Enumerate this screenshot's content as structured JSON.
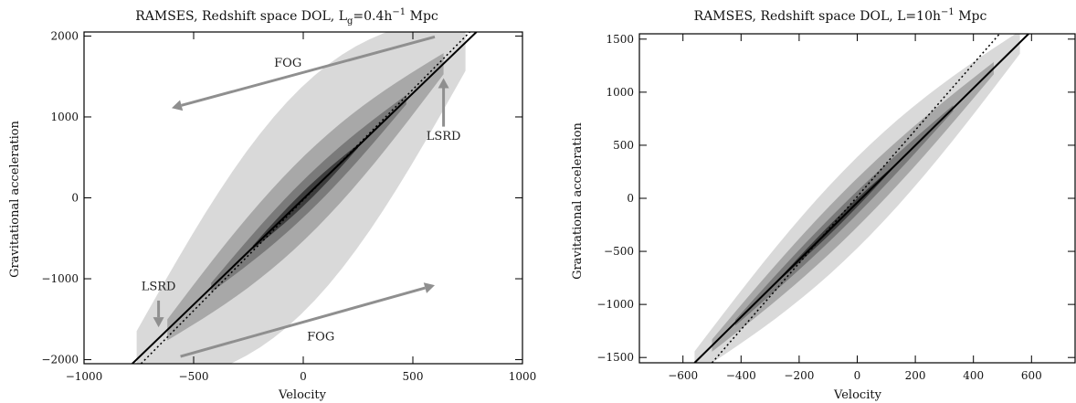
{
  "chart_data": [
    {
      "type": "scatter",
      "title": "RAMSES, Redshift space DOL, L",
      "title_sub": "g",
      "title_rest": "=0.4h",
      "title_sup": "−1",
      "title_tail": " Mpc",
      "xlabel": "Velocity",
      "ylabel": "Gravitational acceleration",
      "xlim": [
        -1000,
        1000
      ],
      "ylim": [
        -2050,
        2050
      ],
      "xticks": [
        -1000,
        -500,
        0,
        500,
        1000
      ],
      "xtick_labels": [
        "−1000",
        "−500",
        "0",
        "500",
        "1000"
      ],
      "yticks": [
        -2000,
        -1000,
        0,
        1000,
        2000
      ],
      "ytick_labels": [
        "−2000",
        "−1000",
        "0",
        "1000",
        "2000"
      ],
      "density_levels": [
        {
          "level": 1,
          "color": "#d9d9d9",
          "half_width": 1400,
          "x_extent": [
            -760,
            740
          ]
        },
        {
          "level": 2,
          "color": "#a8a8a8",
          "half_width": 520,
          "x_extent": [
            -620,
            640
          ]
        },
        {
          "level": 3,
          "color": "#7a7a7a",
          "half_width": 230,
          "x_extent": [
            -420,
            470
          ]
        },
        {
          "level": 4,
          "color": "#3d3d3d",
          "half_width": 90,
          "x_extent": [
            -230,
            250
          ]
        }
      ],
      "lines": [
        {
          "style": "solid",
          "points": [
            [
              -780,
              -2050
            ],
            [
              790,
              2050
            ]
          ]
        },
        {
          "style": "dotted",
          "points": [
            [
              -740,
              -2050
            ],
            [
              760,
              2050
            ]
          ]
        }
      ],
      "annotations": [
        {
          "text": "FOG",
          "x": -70,
          "y": 1620,
          "arrow_from": [
            600,
            1990
          ],
          "arrow_to": [
            -600,
            1110
          ]
        },
        {
          "text": "LSRD",
          "x": 640,
          "y": 720,
          "arrow_from": [
            640,
            880
          ],
          "arrow_to": [
            640,
            1480
          ]
        },
        {
          "text": "LSRD",
          "x": -660,
          "y": -1140,
          "arrow_from": [
            -660,
            -1270
          ],
          "arrow_to": [
            -660,
            -1600
          ]
        },
        {
          "text": "FOG",
          "x": 80,
          "y": -1760,
          "arrow_from": [
            -560,
            -1960
          ],
          "arrow_to": [
            600,
            -1080
          ]
        }
      ]
    },
    {
      "type": "scatter",
      "title": "RAMSES, Redshift space DOL, L=10h",
      "title_sup": "−1",
      "title_tail": " Mpc",
      "xlabel": "Velocity",
      "ylabel": "Gravitational acceleration",
      "xlim": [
        -750,
        750
      ],
      "ylim": [
        -1550,
        1550
      ],
      "xticks": [
        -600,
        -400,
        -200,
        0,
        200,
        400,
        600
      ],
      "xtick_labels": [
        "−600",
        "−400",
        "−200",
        "0",
        "200",
        "400",
        "600"
      ],
      "yticks": [
        -1500,
        -1000,
        -500,
        0,
        500,
        1000,
        1500
      ],
      "ytick_labels": [
        "−1500",
        "−1000",
        "−500",
        "0",
        "500",
        "1000",
        "1500"
      ],
      "density_levels": [
        {
          "level": 1,
          "color": "#d9d9d9",
          "half_width": 430,
          "x_extent": [
            -560,
            560
          ]
        },
        {
          "level": 2,
          "color": "#a8a8a8",
          "half_width": 230,
          "x_extent": [
            -500,
            470
          ]
        },
        {
          "level": 3,
          "color": "#7a7a7a",
          "half_width": 110,
          "x_extent": [
            -420,
            330
          ]
        },
        {
          "level": 4,
          "color": "#3d3d3d",
          "half_width": 45,
          "x_extent": [
            -260,
            120
          ]
        }
      ],
      "lines": [
        {
          "style": "solid",
          "points": [
            [
              -560,
              -1550
            ],
            [
              590,
              1550
            ]
          ]
        },
        {
          "style": "dotted",
          "points": [
            [
              -500,
              -1550
            ],
            [
              490,
              1550
            ]
          ]
        }
      ],
      "annotations": []
    }
  ]
}
